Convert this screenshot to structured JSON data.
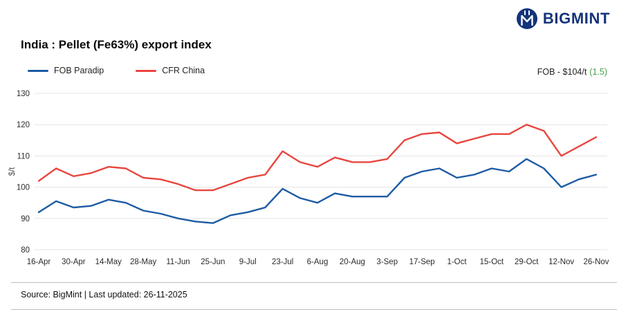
{
  "header": {
    "brand": "BIGMINT",
    "logo_icon": "bigmint-circle-m-icon",
    "brand_color": "#14337a"
  },
  "title": "India : Pellet (Fe63%) export index",
  "legend": [
    {
      "label": "FOB Paradip",
      "color": "#1d5ba4"
    },
    {
      "label": "CFR China",
      "color": "#e8463f"
    }
  ],
  "price_tag": {
    "label": "FOB - $104/t",
    "change": "(1.5)",
    "change_color": "#43a047"
  },
  "chart_data": {
    "type": "line",
    "title": "India : Pellet (Fe63%) export index",
    "xlabel": "",
    "ylabel": "$/t",
    "ylim": [
      80,
      130
    ],
    "yticks": [
      80,
      90,
      100,
      110,
      120,
      130
    ],
    "grid": "horizontal",
    "legend_position": "top-left",
    "x_tick_every": 2,
    "x": [
      "16-Apr",
      "23-Apr",
      "30-Apr",
      "7-May",
      "14-May",
      "21-May",
      "28-May",
      "4-Jun",
      "11-Jun",
      "18-Jun",
      "25-Jun",
      "2-Jul",
      "9-Jul",
      "16-Jul",
      "23-Jul",
      "30-Jul",
      "6-Aug",
      "13-Aug",
      "20-Aug",
      "27-Aug",
      "3-Sep",
      "10-Sep",
      "17-Sep",
      "24-Sep",
      "1-Oct",
      "8-Oct",
      "15-Oct",
      "22-Oct",
      "29-Oct",
      "5-Nov",
      "12-Nov",
      "19-Nov",
      "26-Nov"
    ],
    "series": [
      {
        "name": "FOB Paradip",
        "color": "#1d5ba4",
        "values": [
          92,
          95.5,
          93.5,
          94,
          96,
          95,
          92.5,
          91.5,
          90,
          89,
          88.5,
          91,
          92,
          93.5,
          99.5,
          96.5,
          95,
          98,
          97,
          97,
          97,
          103,
          105,
          106,
          103,
          104,
          106,
          105,
          109,
          106,
          100,
          102.5,
          104
        ]
      },
      {
        "name": "CFR China",
        "color": "#e8463f",
        "values": [
          102,
          106,
          103.5,
          104.5,
          106.5,
          106,
          103,
          102.5,
          101,
          99,
          99,
          101,
          103,
          104,
          111.5,
          108,
          106.5,
          109.5,
          108,
          108,
          109,
          115,
          117,
          117.5,
          114,
          115.5,
          117,
          117,
          120,
          118,
          110,
          113,
          116
        ]
      }
    ]
  },
  "footer": {
    "source": "Source: BigMint | Last updated: 26-11-2025"
  }
}
